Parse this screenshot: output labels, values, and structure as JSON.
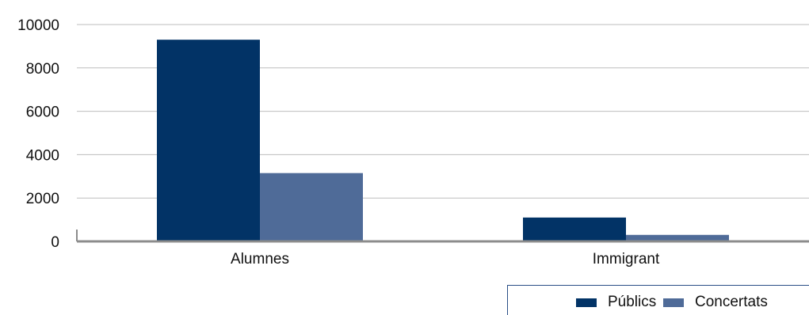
{
  "chart_data": {
    "type": "bar",
    "categories": [
      "Alumnes",
      "Immigrant"
    ],
    "series": [
      {
        "name": "Públics",
        "values": [
          9300,
          1100
        ],
        "color": "#023366"
      },
      {
        "name": "Concertats",
        "values": [
          3150,
          300
        ],
        "color": "#4f6b98"
      }
    ],
    "ylim": [
      0,
      10000
    ],
    "yticks": [
      "0",
      "2000",
      "4000",
      "6000",
      "8000",
      "10000"
    ],
    "grid": true,
    "legend": "bottom-right"
  }
}
